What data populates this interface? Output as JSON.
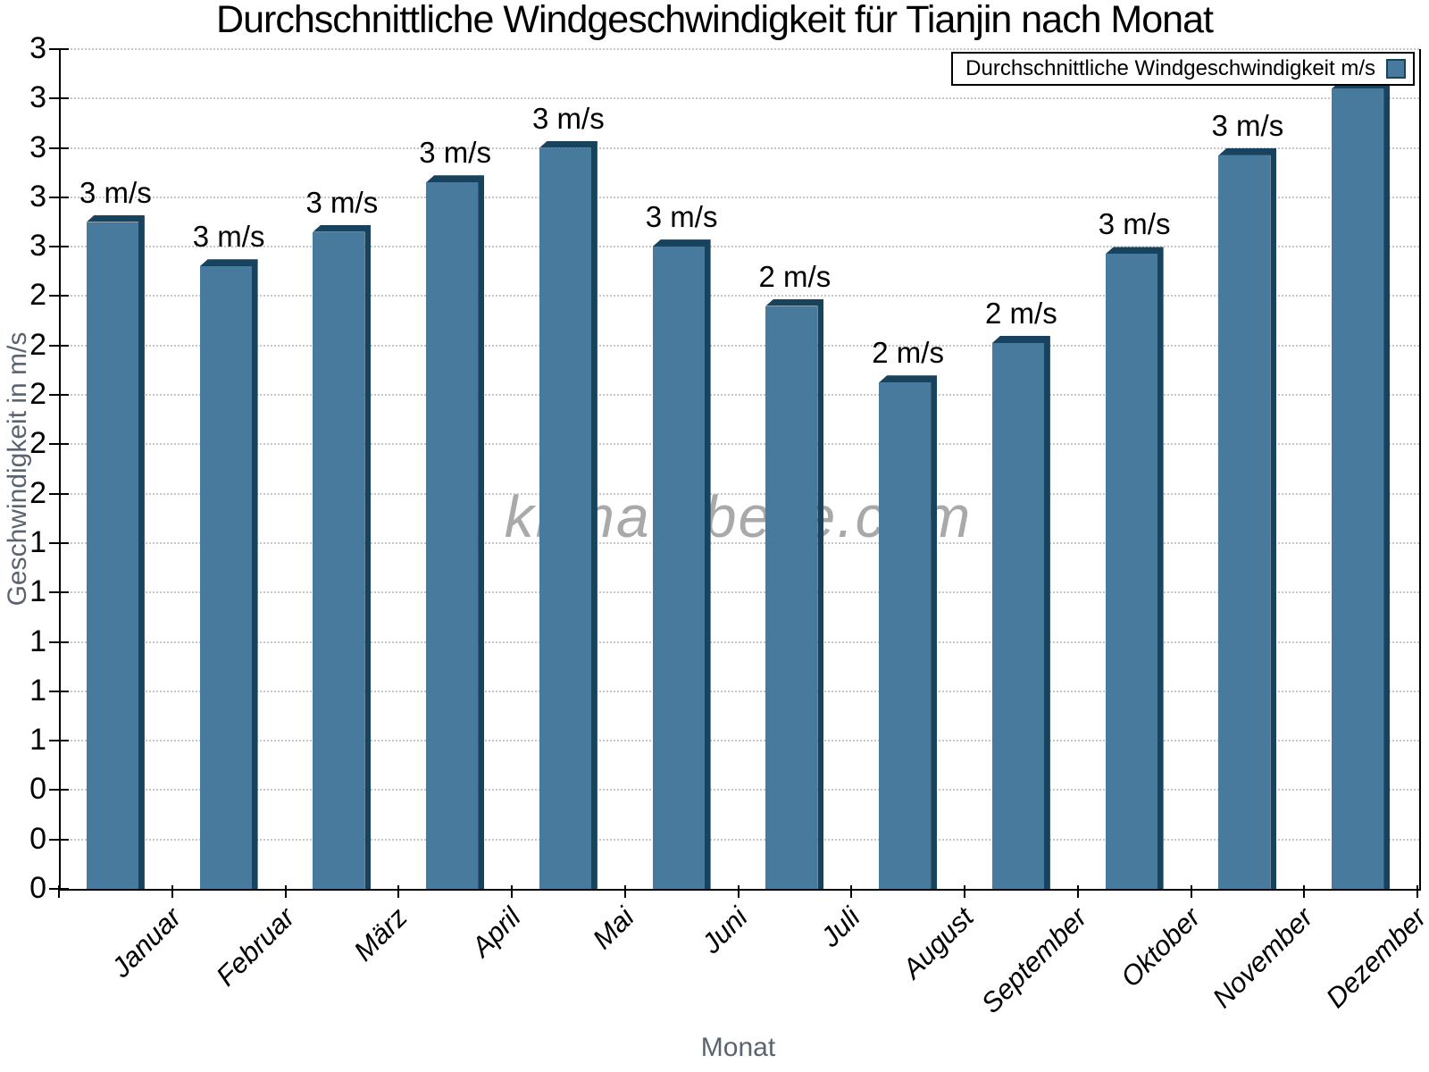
{
  "title": "Durchschnittliche Windgeschwindigkeit für Tianjin nach Monat",
  "legend": {
    "label": "Durchschnittliche Windgeschwindigkeit m/s"
  },
  "watermark": "klimatabelle.com",
  "chart_data": {
    "type": "bar",
    "title": "Durchschnittliche Windgeschwindigkeit für Tianjin nach Monat",
    "xlabel": "Monat",
    "ylabel": "Geschwindigkeit in m/s",
    "categories": [
      "Januar",
      "Februar",
      "März",
      "April",
      "Mai",
      "Juni",
      "Juli",
      "August",
      "September",
      "Oktober",
      "November",
      "Dezember"
    ],
    "values": [
      2.7,
      2.52,
      2.66,
      2.86,
      3.0,
      2.6,
      2.36,
      2.05,
      2.21,
      2.57,
      2.97,
      3.24
    ],
    "bar_labels": [
      "3 m/s",
      "3 m/s",
      "3 m/s",
      "3 m/s",
      "3 m/s",
      "3 m/s",
      "2 m/s",
      "2 m/s",
      "2 m/s",
      "3 m/s",
      "3 m/s",
      ""
    ],
    "unit": "m/s",
    "ylim": [
      0,
      3.4
    ],
    "ytick_step": 0.2,
    "ytick_labels_bottom_to_top": [
      "0",
      "0",
      "0",
      "1",
      "1",
      "1",
      "1",
      "1",
      "2",
      "2",
      "2",
      "2",
      "2",
      "3",
      "3",
      "3",
      "3",
      "3"
    ],
    "grid": "horizontal-dotted",
    "legend_position": "top-right",
    "colors": {
      "bar_face": "#477a9c",
      "bar_edge": "#17435f",
      "grid": "#c6c6c6",
      "axis": "#000000",
      "axis_title_text": "#5a6470",
      "watermark": "#a9a9a9",
      "background": "#ffffff",
      "tick_label_text": "#000000"
    }
  }
}
